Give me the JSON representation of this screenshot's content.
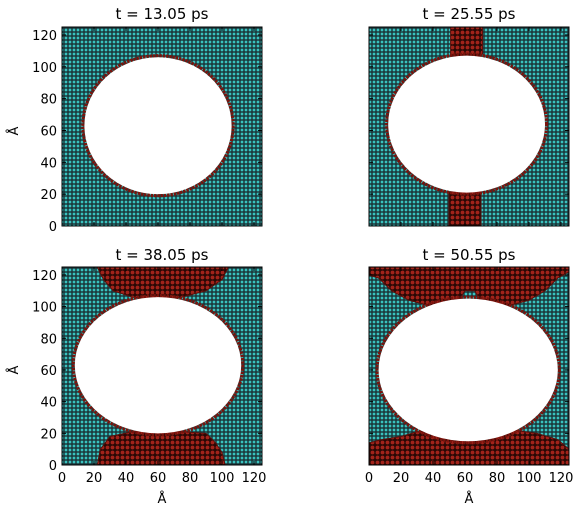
{
  "chart_data": [
    {
      "type": "scatter",
      "title": "t = 13.05 ps",
      "xlim": [
        0,
        125
      ],
      "ylim": [
        0,
        125
      ],
      "ylabel": "Å",
      "xlabel": "",
      "x_ticks": [
        "0",
        "20",
        "40",
        "60",
        "80",
        "100",
        "120"
      ],
      "y_ticks": [
        "0",
        "20",
        "40",
        "60",
        "80",
        "100",
        "120"
      ],
      "show_x_ticklabels": false,
      "show_y_ticklabels": true,
      "void": {
        "cx": 60,
        "cy": 63,
        "rx": 46,
        "ry": 43
      },
      "red_regions": [],
      "colors": {
        "blue_atoms": "#2f9e9c",
        "red_atoms": "#8b1a12"
      }
    },
    {
      "type": "scatter",
      "title": "t = 25.55 ps",
      "xlim": [
        0,
        125
      ],
      "ylim": [
        0,
        125
      ],
      "ylabel": "",
      "xlabel": "",
      "x_ticks": [
        "0",
        "20",
        "40",
        "60",
        "80",
        "100",
        "120"
      ],
      "y_ticks": [
        "0",
        "20",
        "40",
        "60",
        "80",
        "100",
        "120"
      ],
      "show_x_ticklabels": false,
      "show_y_ticklabels": false,
      "void": {
        "cx": 61,
        "cy": 64,
        "rx": 49,
        "ry": 43
      },
      "red_regions": [
        {
          "poly": [
            [
              51,
              125
            ],
            [
              71,
              125
            ],
            [
              71,
              108
            ],
            [
              65,
              104
            ],
            [
              57,
              104
            ],
            [
              51,
              108
            ]
          ]
        },
        {
          "poly": [
            [
              50,
              0
            ],
            [
              70,
              0
            ],
            [
              70,
              22
            ],
            [
              64,
              23
            ],
            [
              56,
              23
            ],
            [
              50,
              21
            ]
          ]
        }
      ],
      "colors": {
        "blue_atoms": "#2f9e9c",
        "red_atoms": "#8b1a12"
      }
    },
    {
      "type": "scatter",
      "title": "t = 38.05 ps",
      "xlim": [
        0,
        125
      ],
      "ylim": [
        0,
        125
      ],
      "ylabel": "Å",
      "xlabel": "Å",
      "x_ticks": [
        "0",
        "20",
        "40",
        "60",
        "80",
        "100",
        "120"
      ],
      "y_ticks": [
        "0",
        "20",
        "40",
        "60",
        "80",
        "100",
        "120"
      ],
      "show_x_ticklabels": true,
      "show_y_ticklabels": true,
      "void": {
        "cx": 60,
        "cy": 63,
        "rx": 52,
        "ry": 43
      },
      "red_regions": [
        {
          "poly": [
            [
              22,
              125
            ],
            [
              104,
              125
            ],
            [
              100,
              117
            ],
            [
              90,
              110
            ],
            [
              75,
              106
            ],
            [
              60,
              104
            ],
            [
              44,
              106
            ],
            [
              32,
              110
            ],
            [
              26,
              117
            ]
          ]
        },
        {
          "poly": [
            [
              22,
              0
            ],
            [
              102,
              0
            ],
            [
              100,
              8
            ],
            [
              96,
              14
            ],
            [
              90,
              20
            ],
            [
              75,
              21
            ],
            [
              60,
              22
            ],
            [
              44,
              21
            ],
            [
              30,
              18
            ],
            [
              24,
              10
            ]
          ]
        }
      ],
      "colors": {
        "blue_atoms": "#2f9e9c",
        "red_atoms": "#8b1a12"
      }
    },
    {
      "type": "scatter",
      "title": "t = 50.55 ps",
      "xlim": [
        0,
        125
      ],
      "ylim": [
        0,
        125
      ],
      "ylabel": "",
      "xlabel": "Å",
      "x_ticks": [
        "0",
        "20",
        "40",
        "60",
        "80",
        "100",
        "120"
      ],
      "y_ticks": [
        "0",
        "20",
        "40",
        "60",
        "80",
        "100",
        "120"
      ],
      "show_x_ticklabels": true,
      "show_y_ticklabels": false,
      "void": {
        "cx": 62,
        "cy": 60,
        "rx": 56,
        "ry": 45
      },
      "red_regions": [
        {
          "poly": [
            [
              0,
              125
            ],
            [
              125,
              125
            ],
            [
              125,
              122
            ],
            [
              118,
              118
            ],
            [
              110,
              110
            ],
            [
              100,
              104
            ],
            [
              85,
              100
            ],
            [
              72,
              100
            ],
            [
              66,
              110
            ],
            [
              60,
              110
            ],
            [
              55,
              102
            ],
            [
              40,
              100
            ],
            [
              25,
              104
            ],
            [
              14,
              110
            ],
            [
              6,
              118
            ],
            [
              0,
              120
            ]
          ]
        },
        {
          "poly": [
            [
              0,
              0
            ],
            [
              125,
              0
            ],
            [
              125,
              10
            ],
            [
              118,
              16
            ],
            [
              105,
              20
            ],
            [
              90,
              22
            ],
            [
              75,
              23
            ],
            [
              60,
              23
            ],
            [
              45,
              22
            ],
            [
              30,
              21
            ],
            [
              20,
              18
            ],
            [
              8,
              16
            ],
            [
              0,
              14
            ]
          ]
        }
      ],
      "colors": {
        "blue_atoms": "#2f9e9c",
        "red_atoms": "#8b1a12"
      }
    }
  ]
}
